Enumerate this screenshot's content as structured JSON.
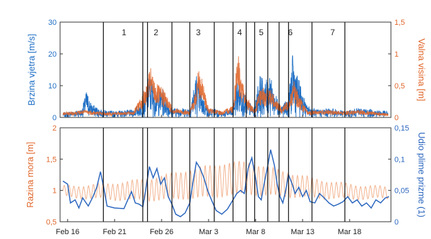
{
  "chart_data": [
    {
      "type": "line",
      "panel": "top",
      "ylabel_left": "Brzina vjetra [m/s]",
      "ylabel_right": "Valna visina [m]",
      "ylim_left": [
        0,
        30
      ],
      "ylim_right": [
        0,
        1.5
      ],
      "yticks_left": [
        "0",
        "10",
        "20",
        "30"
      ],
      "yticks_right": [
        "0",
        "0,5",
        "1",
        "1,5"
      ],
      "xlim_days": [
        15.2,
        50.4
      ],
      "x_tick_labels": [
        "Feb 16",
        "Feb 21",
        "Feb 26",
        "Mar 3",
        "Mar 8",
        "Mar 13",
        "Mar 18"
      ],
      "x_ticks_days": [
        16,
        21,
        26,
        31,
        36,
        41,
        46
      ],
      "grid": false,
      "period_labels": [
        {
          "label": "1",
          "x_day": 22.0
        },
        {
          "label": "2",
          "x_day": 25.4
        },
        {
          "label": "3",
          "x_day": 29.9
        },
        {
          "label": "4",
          "x_day": 34.3
        },
        {
          "label": "5",
          "x_day": 36.6
        },
        {
          "label": "6",
          "x_day": 39.7
        },
        {
          "label": "7",
          "x_day": 44.2
        }
      ],
      "period_boundaries_days": [
        19.8,
        24.0,
        24.5,
        27.1,
        29.0,
        31.6,
        33.6,
        35.0,
        35.9,
        37.3,
        38.5,
        39.5,
        42.0,
        45.5
      ],
      "series": [
        {
          "axis": "left",
          "color": "#1f6fc5",
          "envelope": [
            [
              15.5,
              1.5
            ],
            [
              17.5,
              2.5
            ],
            [
              18.0,
              8.5
            ],
            [
              18.5,
              4.5
            ],
            [
              19.5,
              2.5
            ],
            [
              21.0,
              2
            ],
            [
              23.0,
              2.5
            ],
            [
              24.2,
              6
            ],
            [
              24.6,
              14
            ],
            [
              25.0,
              12
            ],
            [
              25.5,
              8
            ],
            [
              26.1,
              9
            ],
            [
              27.0,
              3
            ],
            [
              29.0,
              3
            ],
            [
              29.7,
              14
            ],
            [
              30.2,
              8
            ],
            [
              31.0,
              2.5
            ],
            [
              31.8,
              3
            ],
            [
              32.5,
              1.5
            ],
            [
              33.6,
              3
            ],
            [
              34.0,
              12
            ],
            [
              34.5,
              10
            ],
            [
              35.0,
              6
            ],
            [
              35.9,
              3
            ],
            [
              36.4,
              14
            ],
            [
              37.0,
              11
            ],
            [
              37.5,
              14
            ],
            [
              38.0,
              8
            ],
            [
              38.8,
              4
            ],
            [
              39.5,
              6
            ],
            [
              39.9,
              20
            ],
            [
              40.4,
              14
            ],
            [
              40.9,
              9
            ],
            [
              41.4,
              4
            ],
            [
              42.5,
              2.5
            ],
            [
              44.0,
              3
            ],
            [
              45.5,
              2
            ],
            [
              47.0,
              3
            ],
            [
              48.5,
              2.5
            ],
            [
              50.0,
              2
            ]
          ]
        },
        {
          "axis": "right",
          "color": "#e0672b",
          "envelope": [
            [
              15.5,
              0.08
            ],
            [
              18.0,
              0.12
            ],
            [
              20.0,
              0.08
            ],
            [
              23.0,
              0.1
            ],
            [
              24.4,
              0.5
            ],
            [
              24.8,
              0.8
            ],
            [
              25.3,
              0.55
            ],
            [
              26.2,
              0.45
            ],
            [
              27.2,
              0.15
            ],
            [
              29.0,
              0.1
            ],
            [
              29.6,
              0.4
            ],
            [
              29.9,
              0.8
            ],
            [
              30.4,
              0.55
            ],
            [
              31.0,
              0.15
            ],
            [
              32.5,
              0.1
            ],
            [
              33.6,
              0.2
            ],
            [
              34.1,
              1.1
            ],
            [
              34.5,
              0.6
            ],
            [
              35.2,
              0.3
            ],
            [
              35.9,
              0.1
            ],
            [
              36.3,
              0.4
            ],
            [
              37.0,
              0.5
            ],
            [
              37.6,
              0.45
            ],
            [
              38.2,
              0.3
            ],
            [
              38.8,
              0.15
            ],
            [
              39.5,
              0.3
            ],
            [
              40.1,
              0.6
            ],
            [
              40.5,
              0.4
            ],
            [
              41.0,
              0.25
            ],
            [
              41.5,
              0.1
            ],
            [
              43.0,
              0.12
            ],
            [
              45.0,
              0.1
            ],
            [
              47.0,
              0.12
            ],
            [
              49.0,
              0.08
            ],
            [
              50.0,
              0.06
            ]
          ]
        }
      ]
    },
    {
      "type": "line",
      "panel": "bottom",
      "ylabel_left": "Razina mora [m]",
      "ylabel_right": "Udio plime prizme (1)",
      "ylim_left": [
        0.5,
        2
      ],
      "ylim_right": [
        0,
        0.15
      ],
      "yticks_left": [
        "0,5",
        "1",
        "1,5",
        "2"
      ],
      "yticks_right": [
        "0",
        "0,05",
        "0,1",
        "0,15"
      ],
      "xlim_days": [
        15.2,
        50.4
      ],
      "x_tick_labels": [
        "Feb 16",
        "Feb 21",
        "Feb 26",
        "Mar 3",
        "Mar 8",
        "Mar 13",
        "Mar 18"
      ],
      "x_ticks_days": [
        16,
        21,
        26,
        31,
        36,
        41,
        46
      ],
      "grid": false,
      "series": [
        {
          "axis": "left",
          "color": "#f2b38f",
          "mean": [
            [
              15.5,
              0.98
            ],
            [
              19.0,
              0.98
            ],
            [
              22.0,
              0.99
            ],
            [
              25.0,
              1.02
            ],
            [
              28.0,
              1.08
            ],
            [
              31.0,
              1.14
            ],
            [
              33.0,
              1.18
            ],
            [
              35.0,
              1.2
            ],
            [
              37.0,
              1.15
            ],
            [
              40.0,
              1.08
            ],
            [
              43.0,
              1.02
            ],
            [
              46.0,
              0.98
            ],
            [
              50.0,
              0.96
            ]
          ],
          "amplitude": [
            [
              15.5,
              0.08
            ],
            [
              20.0,
              0.12
            ],
            [
              24.0,
              0.16
            ],
            [
              27.0,
              0.2
            ],
            [
              31.0,
              0.25
            ],
            [
              34.0,
              0.26
            ],
            [
              37.0,
              0.23
            ],
            [
              40.0,
              0.18
            ],
            [
              44.0,
              0.13
            ],
            [
              48.0,
              0.1
            ],
            [
              50.0,
              0.09
            ]
          ]
        },
        {
          "axis": "right",
          "color": "#2b66bf",
          "points": [
            [
              15.5,
              0.065
            ],
            [
              16.0,
              0.06
            ],
            [
              16.3,
              0.03
            ],
            [
              16.8,
              0.035
            ],
            [
              17.2,
              0.022
            ],
            [
              17.6,
              0.038
            ],
            [
              18.2,
              0.025
            ],
            [
              18.7,
              0.04
            ],
            [
              19.1,
              0.055
            ],
            [
              19.5,
              0.08
            ],
            [
              19.9,
              0.05
            ],
            [
              20.2,
              0.025
            ],
            [
              21.0,
              0.022
            ],
            [
              22.0,
              0.021
            ],
            [
              22.4,
              0.035
            ],
            [
              22.8,
              0.048
            ],
            [
              23.2,
              0.03
            ],
            [
              23.6,
              0.028
            ],
            [
              24.0,
              0.024
            ],
            [
              24.3,
              0.05
            ],
            [
              24.7,
              0.088
            ],
            [
              25.1,
              0.07
            ],
            [
              25.5,
              0.085
            ],
            [
              25.9,
              0.06
            ],
            [
              26.3,
              0.07
            ],
            [
              26.7,
              0.04
            ],
            [
              27.1,
              0.028
            ],
            [
              27.5,
              0.012
            ],
            [
              28.0,
              0.008
            ],
            [
              28.5,
              0.014
            ],
            [
              29.0,
              0.03
            ],
            [
              29.3,
              0.06
            ],
            [
              29.7,
              0.095
            ],
            [
              30.1,
              0.085
            ],
            [
              30.5,
              0.07
            ],
            [
              30.9,
              0.05
            ],
            [
              31.3,
              0.035
            ],
            [
              31.8,
              0.018
            ],
            [
              32.4,
              0.012
            ],
            [
              33.0,
              0.02
            ],
            [
              33.6,
              0.035
            ],
            [
              34.0,
              0.045
            ],
            [
              34.4,
              0.05
            ],
            [
              34.8,
              0.045
            ],
            [
              35.2,
              0.085
            ],
            [
              35.6,
              0.102
            ],
            [
              36.0,
              0.07
            ],
            [
              36.3,
              0.04
            ],
            [
              36.6,
              0.035
            ],
            [
              36.9,
              0.06
            ],
            [
              37.3,
              0.09
            ],
            [
              37.6,
              0.115
            ],
            [
              38.0,
              0.09
            ],
            [
              38.3,
              0.06
            ],
            [
              38.6,
              0.04
            ],
            [
              38.9,
              0.03
            ],
            [
              39.2,
              0.05
            ],
            [
              39.5,
              0.075
            ],
            [
              39.9,
              0.06
            ],
            [
              40.2,
              0.045
            ],
            [
              40.6,
              0.055
            ],
            [
              41.0,
              0.04
            ],
            [
              41.4,
              0.05
            ],
            [
              41.8,
              0.032
            ],
            [
              42.3,
              0.03
            ],
            [
              42.8,
              0.045
            ],
            [
              43.3,
              0.038
            ],
            [
              43.8,
              0.03
            ],
            [
              44.3,
              0.025
            ],
            [
              44.8,
              0.028
            ],
            [
              45.3,
              0.032
            ],
            [
              45.8,
              0.04
            ],
            [
              46.3,
              0.03
            ],
            [
              46.8,
              0.035
            ],
            [
              47.3,
              0.025
            ],
            [
              47.8,
              0.03
            ],
            [
              48.3,
              0.022
            ],
            [
              48.8,
              0.035
            ],
            [
              49.3,
              0.03
            ],
            [
              49.8,
              0.038
            ],
            [
              50.2,
              0.04
            ]
          ]
        }
      ]
    }
  ]
}
